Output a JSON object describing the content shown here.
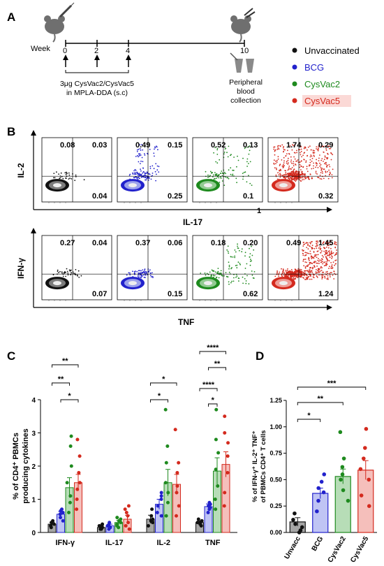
{
  "panel_letters": {
    "a": "A",
    "b": "B",
    "c": "C",
    "d": "D"
  },
  "panel_a": {
    "week_label": "Week",
    "weeks": [
      "0",
      "2",
      "4",
      "10"
    ],
    "vaccine_text_line1": "3μg CysVac2/CysVac5",
    "vaccine_text_line2": "in MPLA-DDA (s.c)",
    "collection_line1": "Peripheral",
    "collection_line2": "blood",
    "collection_line3": "collection"
  },
  "legend": [
    {
      "label": "Unvaccinated",
      "color": "#111111"
    },
    {
      "label": "BCG",
      "color": "#2222cc"
    },
    {
      "label": "CysVac2",
      "color": "#1e8a1e"
    },
    {
      "label": "CysVac5",
      "color": "#d42a1e"
    }
  ],
  "panel_b": {
    "row1": {
      "y_axis": "IL-2",
      "x_axis": "IL-17",
      "extra_label": "1",
      "plots": [
        {
          "ul": "0.08",
          "ur": "0.03",
          "lr": "0.04"
        },
        {
          "ul": "0.49",
          "ur": "0.15",
          "lr": "0.25"
        },
        {
          "ul": "0.52",
          "ur": "0.13",
          "lr": "0.1"
        },
        {
          "ul": "1.74",
          "ur": "0.29",
          "lr": "0.32"
        }
      ]
    },
    "row2": {
      "y_axis": "IFN-γ",
      "x_axis": "TNF",
      "plots": [
        {
          "ul": "0.27",
          "ur": "0.04",
          "lr": "0.07"
        },
        {
          "ul": "0.37",
          "ur": "0.06",
          "lr": "0.15"
        },
        {
          "ul": "0.18",
          "ur": "0.20",
          "lr": "0.62"
        },
        {
          "ul": "0.49",
          "ur": "1.45",
          "lr": "1.24"
        }
      ]
    }
  },
  "chart_data": [
    {
      "type": "bar",
      "panel": "C",
      "ylabel_line1": "% of CD4⁺ PBMCs",
      "ylabel_line2": "producing cytokines",
      "categories": [
        "IFN-γ",
        "IL-17",
        "IL-2",
        "TNF"
      ],
      "ylim": [
        0,
        4
      ],
      "yticks": [
        "0",
        "1",
        "2",
        "3",
        "4"
      ],
      "series": [
        {
          "name": "Unvaccinated",
          "values": [
            0.25,
            0.15,
            0.4,
            0.3
          ],
          "errors": [
            0.06,
            0.05,
            0.12,
            0.05
          ]
        },
        {
          "name": "BCG",
          "values": [
            0.55,
            0.2,
            0.85,
            0.78
          ],
          "errors": [
            0.08,
            0.05,
            0.15,
            0.08
          ]
        },
        {
          "name": "CysVac2",
          "values": [
            1.35,
            0.3,
            1.5,
            1.85
          ],
          "errors": [
            0.3,
            0.06,
            0.4,
            0.4
          ]
        },
        {
          "name": "CysVac5",
          "values": [
            1.5,
            0.4,
            1.45,
            2.05
          ],
          "errors": [
            0.25,
            0.12,
            0.3,
            0.38
          ]
        }
      ],
      "points": [
        [
          [
            0.15,
            0.2,
            0.25,
            0.3,
            0.35,
            0.2
          ],
          [
            0.1,
            0.15,
            0.2,
            0.25,
            0.2,
            0.1
          ],
          [
            0.2,
            0.3,
            0.5,
            0.7,
            0.35,
            0.4
          ],
          [
            0.2,
            0.25,
            0.3,
            0.35,
            0.3,
            0.4
          ]
        ],
        [
          [
            0.35,
            0.45,
            0.55,
            0.65,
            0.6,
            0.7
          ],
          [
            0.1,
            0.15,
            0.2,
            0.3,
            0.25,
            0.2
          ],
          [
            0.5,
            0.6,
            0.8,
            1.0,
            1.1,
            1.2
          ],
          [
            0.6,
            0.7,
            0.8,
            0.9,
            0.85,
            0.75
          ]
        ],
        [
          [
            0.6,
            0.9,
            1.1,
            1.5,
            2.0,
            2.6,
            2.9
          ],
          [
            0.15,
            0.2,
            0.3,
            0.4,
            0.35,
            0.45,
            0.25
          ],
          [
            0.5,
            0.9,
            1.2,
            1.5,
            2.1,
            2.6,
            3.7
          ],
          [
            0.7,
            1.0,
            1.4,
            1.9,
            2.4,
            2.8,
            3.7
          ]
        ],
        [
          [
            0.7,
            1.0,
            1.3,
            1.5,
            1.8,
            2.3,
            2.8
          ],
          [
            0.1,
            0.2,
            0.3,
            0.5,
            0.6,
            0.8,
            0.7
          ],
          [
            0.5,
            0.8,
            1.2,
            1.4,
            1.8,
            2.1,
            3.1
          ],
          [
            0.8,
            1.2,
            1.8,
            2.3,
            2.7,
            3.0,
            3.5
          ]
        ]
      ],
      "significance": [
        {
          "cat": 0,
          "from": 0,
          "to": 3,
          "label": "**",
          "level": 3
        },
        {
          "cat": 0,
          "from": 0,
          "to": 2,
          "label": "**",
          "level": 2
        },
        {
          "cat": 0,
          "from": 1,
          "to": 3,
          "label": "*",
          "level": 1
        },
        {
          "cat": 2,
          "from": 0,
          "to": 3,
          "label": "*",
          "level": 2
        },
        {
          "cat": 2,
          "from": 0,
          "to": 2,
          "label": "*",
          "level": 1
        },
        {
          "cat": 3,
          "from": 0,
          "to": 3,
          "label": "****",
          "level": 4
        },
        {
          "cat": 3,
          "from": 1,
          "to": 3,
          "label": "**",
          "level": 3
        },
        {
          "cat": 3,
          "from": 0,
          "to": 2,
          "label": "****",
          "level": 2
        },
        {
          "cat": 3,
          "from": 1,
          "to": 2,
          "label": "*",
          "level": 1
        }
      ]
    },
    {
      "type": "bar",
      "panel": "D",
      "ylabel_line1": "% of IFN-γ⁺ IL-2⁺ TNF⁺",
      "ylabel_line2": "of PBMCs CD4⁺ T cells",
      "categories": [
        "Unvacc",
        "BCG",
        "CysVac2",
        "CysVac5"
      ],
      "ylim": [
        0,
        1.25
      ],
      "yticks": [
        "0.00",
        "0.25",
        "0.50",
        "0.75",
        "1.00",
        "1.25"
      ],
      "values": [
        0.1,
        0.37,
        0.53,
        0.59
      ],
      "errors": [
        0.04,
        0.05,
        0.07,
        0.09
      ],
      "points": [
        [
          0.0,
          0.05,
          0.08,
          0.12,
          0.18,
          0.02
        ],
        [
          0.2,
          0.3,
          0.38,
          0.42,
          0.48,
          0.55
        ],
        [
          0.3,
          0.4,
          0.5,
          0.55,
          0.62,
          0.7,
          0.95
        ],
        [
          0.25,
          0.35,
          0.5,
          0.6,
          0.7,
          0.8,
          0.98
        ]
      ],
      "significance": [
        {
          "from": 0,
          "to": 3,
          "label": "***",
          "level": 3
        },
        {
          "from": 0,
          "to": 2,
          "label": "**",
          "level": 2
        },
        {
          "from": 0,
          "to": 1,
          "label": "*",
          "level": 1
        }
      ]
    }
  ]
}
